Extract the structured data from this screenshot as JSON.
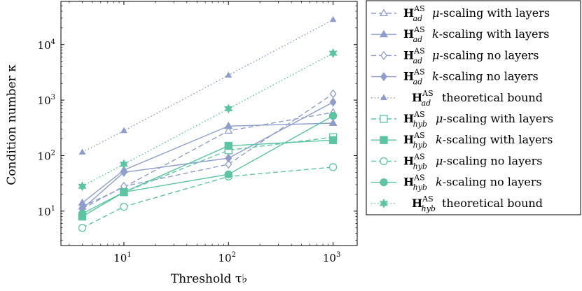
{
  "chart_data": {
    "type": "line",
    "xlabel": "Threshold τ♭",
    "ylabel": "Condition number κ",
    "xscale": "log",
    "yscale": "log",
    "xlim": [
      2.5,
      1700
    ],
    "ylim": [
      2.4,
      60000
    ],
    "xticks": [
      {
        "value": 10,
        "base": "10",
        "exp": "1"
      },
      {
        "value": 100,
        "base": "10",
        "exp": "2"
      },
      {
        "value": 1000,
        "base": "10",
        "exp": "3"
      }
    ],
    "yticks": [
      {
        "value": 10,
        "base": "10",
        "exp": "1"
      },
      {
        "value": 100,
        "base": "10",
        "exp": "2"
      },
      {
        "value": 1000,
        "base": "10",
        "exp": "3"
      },
      {
        "value": 10000,
        "base": "10",
        "exp": "4"
      }
    ],
    "grid": false,
    "legend_position": "outside-right",
    "x": [
      4,
      10,
      100,
      1000
    ],
    "series": [
      {
        "name": "H_ad^AS μ-scaling with layers",
        "label_main": "H",
        "label_sub": "ad",
        "label_sup": "AS",
        "label_var": "μ",
        "label_rest": "-scaling with layers",
        "color": "#8f9dcc",
        "dash": "dashed",
        "marker": "triangle-open",
        "values": [
          12,
          27,
          280,
          600
        ]
      },
      {
        "name": "H_ad^AS k-scaling with layers",
        "label_main": "H",
        "label_sub": "ad",
        "label_sup": "AS",
        "label_var": "k",
        "label_rest": "-scaling with layers",
        "color": "#8f9dcc",
        "dash": "solid",
        "marker": "triangle-filled",
        "values": [
          14,
          55,
          340,
          385
        ]
      },
      {
        "name": "H_ad^AS μ-scaling no layers",
        "label_main": "H",
        "label_sub": "ad",
        "label_sup": "AS",
        "label_var": "μ",
        "label_rest": "-scaling no layers",
        "color": "#8f9dcc",
        "dash": "dashed",
        "marker": "diamond-open",
        "values": [
          11,
          28,
          70,
          1300
        ]
      },
      {
        "name": "H_ad^AS k-scaling no layers",
        "label_main": "H",
        "label_sub": "ad",
        "label_sup": "AS",
        "label_var": "k",
        "label_rest": "-scaling no layers",
        "color": "#8f9dcc",
        "dash": "solid",
        "marker": "diamond-filled",
        "values": [
          11,
          50,
          90,
          920
        ]
      },
      {
        "name": "H_ad^AS theoretical bound",
        "label_main": "H",
        "label_sub": "ad",
        "label_sup": "AS",
        "label_var": "",
        "label_rest": "theoretical bound",
        "color": "#8f9dcc",
        "dash": "dotted",
        "marker": "triangle-filled-small",
        "values": [
          115,
          280,
          2800,
          28000
        ]
      },
      {
        "name": "H_hyb^AS μ-scaling with layers",
        "label_main": "H",
        "label_sub": "hyb",
        "label_sup": "AS",
        "label_var": "μ",
        "label_rest": "-scaling with layers",
        "color": "#5cc4a2",
        "dash": "dashed",
        "marker": "square-open",
        "values": [
          8,
          22,
          125,
          215
        ]
      },
      {
        "name": "H_hyb^AS k-scaling with layers",
        "label_main": "H",
        "label_sub": "hyb",
        "label_sup": "AS",
        "label_var": "k",
        "label_rest": "-scaling with layers",
        "color": "#5cc4a2",
        "dash": "solid",
        "marker": "square-filled",
        "values": [
          8,
          22,
          150,
          190
        ]
      },
      {
        "name": "H_hyb^AS μ-scaling no layers",
        "label_main": "H",
        "label_sub": "hyb",
        "label_sup": "AS",
        "label_var": "μ",
        "label_rest": "-scaling no layers",
        "color": "#5cc4a2",
        "dash": "dashed",
        "marker": "circle-open",
        "values": [
          5,
          12,
          42,
          62
        ]
      },
      {
        "name": "H_hyb^AS k-scaling no layers",
        "label_main": "H",
        "label_sub": "hyb",
        "label_sup": "AS",
        "label_var": "k",
        "label_rest": "-scaling no layers",
        "color": "#5cc4a2",
        "dash": "solid",
        "marker": "circle-filled",
        "values": [
          9,
          22,
          46,
          520
        ]
      },
      {
        "name": "H_hyb^AS theoretical bound",
        "label_main": "H",
        "label_sub": "hyb",
        "label_sup": "AS",
        "label_var": "",
        "label_rest": "theoretical bound",
        "color": "#5cc4a2",
        "dash": "dotted",
        "marker": "star-filled",
        "values": [
          28,
          70,
          700,
          7000
        ]
      }
    ]
  }
}
